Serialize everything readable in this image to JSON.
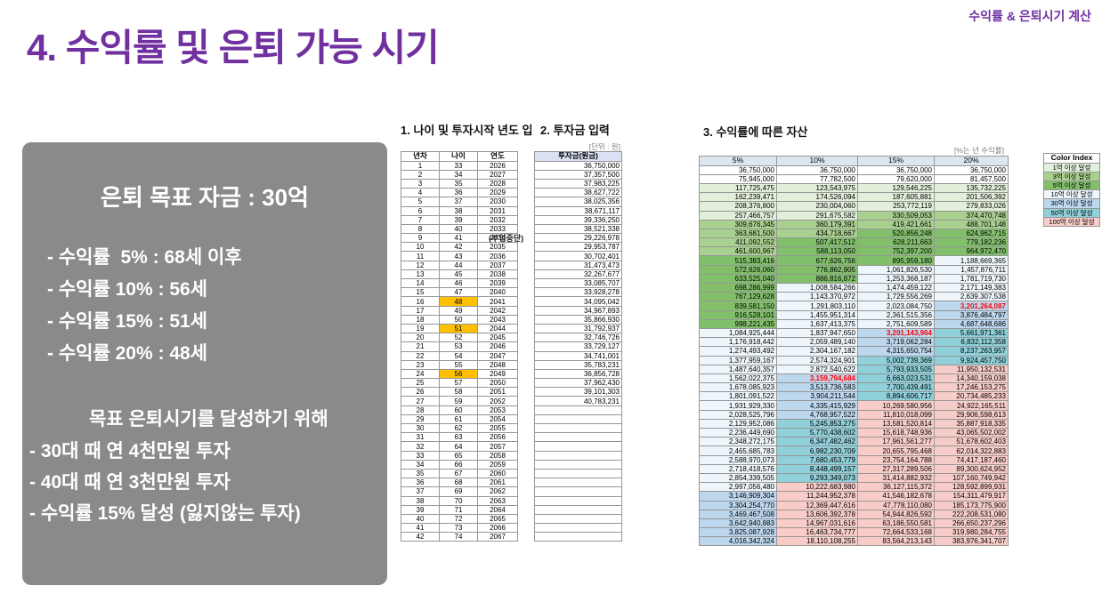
{
  "slide": {
    "title": "4. 수익률 및 은퇴 가능 시기",
    "corner_label": "수익률 & 은퇴시기 계산"
  },
  "summary_box": {
    "headline": "은퇴 목표 자금 : 30억",
    "rate_lines": [
      "- 수익률  5% : 68세 이후",
      "- 수익률 10% : 56세",
      "- 수익률 15% : 51세",
      "- 수익률 20% : 48세"
    ],
    "goal_heading": "목표 은퇴시기를 달성하기 위해",
    "goal_lines": [
      "- 30대 때 연 4천만원 투자",
      "- 40대 때 연 3천만원 투자",
      "- 수익률 15% 달성 (잃지않는 투자)"
    ]
  },
  "section1": {
    "label": "1. 나이 및 투자시작 년도 입",
    "label2": "2. 투자금 입력"
  },
  "section3": {
    "label": "3. 수익률에 따른 자산",
    "note": "[%는 년 수익률]"
  },
  "age_table": {
    "headers": [
      "년차",
      "나이",
      "연도"
    ],
    "annotation": "(부업중단)",
    "highlighted_ages": [
      48,
      51,
      56
    ],
    "rows": [
      [
        1,
        33,
        2026
      ],
      [
        2,
        34,
        2027
      ],
      [
        3,
        35,
        2028
      ],
      [
        4,
        36,
        2029
      ],
      [
        5,
        37,
        2030
      ],
      [
        6,
        38,
        2031
      ],
      [
        7,
        39,
        2032
      ],
      [
        8,
        40,
        2033
      ],
      [
        9,
        41,
        2034
      ],
      [
        10,
        42,
        2035
      ],
      [
        11,
        43,
        2036
      ],
      [
        12,
        44,
        2037
      ],
      [
        13,
        45,
        2038
      ],
      [
        14,
        46,
        2039
      ],
      [
        15,
        47,
        2040
      ],
      [
        16,
        48,
        2041
      ],
      [
        17,
        49,
        2042
      ],
      [
        18,
        50,
        2043
      ],
      [
        19,
        51,
        2044
      ],
      [
        20,
        52,
        2045
      ],
      [
        21,
        53,
        2046
      ],
      [
        22,
        54,
        2047
      ],
      [
        23,
        55,
        2048
      ],
      [
        24,
        56,
        2049
      ],
      [
        25,
        57,
        2050
      ],
      [
        26,
        58,
        2051
      ],
      [
        27,
        59,
        2052
      ],
      [
        28,
        60,
        2053
      ],
      [
        29,
        61,
        2054
      ],
      [
        30,
        62,
        2055
      ],
      [
        31,
        63,
        2056
      ],
      [
        32,
        64,
        2057
      ],
      [
        33,
        65,
        2058
      ],
      [
        34,
        66,
        2059
      ],
      [
        35,
        67,
        2060
      ],
      [
        36,
        68,
        2061
      ],
      [
        37,
        69,
        2062
      ],
      [
        38,
        70,
        2063
      ],
      [
        39,
        71,
        2064
      ],
      [
        40,
        72,
        2065
      ],
      [
        41,
        73,
        2066
      ],
      [
        42,
        74,
        2067
      ]
    ]
  },
  "invest_table": {
    "unit_label": "[단위 : 원]",
    "header": "투자금(원금)",
    "total_rows": 42,
    "values": [
      "36,750,000",
      "37,357,500",
      "37,983,225",
      "38,627,722",
      "38,025,356",
      "38,671,117",
      "39,336,250",
      "38,521,338",
      "29,226,978",
      "29,953,787",
      "30,702,401",
      "31,473,473",
      "32,267,677",
      "33,085,707",
      "33,928,278",
      "34,095,042",
      "34,967,893",
      "35,866,930",
      "31,792,937",
      "32,746,726",
      "33,729,127",
      "34,741,001",
      "35,783,231",
      "36,856,728",
      "37,962,430",
      "39,101,303",
      "40,783,231"
    ]
  },
  "chart_data": {
    "type": "table",
    "title": "3. 수익률에 따른 자산",
    "columns": [
      "5%",
      "10%",
      "15%",
      "20%"
    ],
    "rows": [
      [
        "36,750,000",
        "36,750,000",
        "36,750,000",
        "36,750,000"
      ],
      [
        "75,945,000",
        "77,782,500",
        "79,620,000",
        "81,457,500"
      ],
      [
        "117,725,475",
        "123,543,975",
        "129,546,225",
        "135,732,225"
      ],
      [
        "162,239,471",
        "174,526,094",
        "187,605,881",
        "201,506,392"
      ],
      [
        "208,376,800",
        "230,004,060",
        "253,772,119",
        "279,833,026"
      ],
      [
        "257,466,757",
        "291,675,582",
        "330,509,053",
        "374,470,748"
      ],
      [
        "309,676,345",
        "360,179,391",
        "419,421,661",
        "488,701,148"
      ],
      [
        "363,681,500",
        "434,718,667",
        "520,856,248",
        "624,962,715"
      ],
      [
        "411,092,552",
        "507,417,512",
        "628,211,663",
        "779,182,236"
      ],
      [
        "461,600,967",
        "588,113,050",
        "752,397,200",
        "964,972,470"
      ],
      [
        "515,383,416",
        "677,626,756",
        "895,959,180",
        "1,188,669,365"
      ],
      [
        "572,626,060",
        "776,862,905",
        "1,061,826,530",
        "1,457,876,711"
      ],
      [
        "633,525,040",
        "886,816,872",
        "1,253,368,187",
        "1,781,719,730"
      ],
      [
        "698,286,999",
        "1,008,584,266",
        "1,474,459,122",
        "2,171,149,383"
      ],
      [
        "767,129,628",
        "1,143,370,972",
        "1,729,556,269",
        "2,639,307,538"
      ],
      [
        "839,581,150",
        "1,291,803,110",
        "2,023,084,750",
        "3,201,264,087"
      ],
      [
        "916,528,101",
        "1,455,951,314",
        "2,361,515,356",
        "3,876,484,797"
      ],
      [
        "998,221,435",
        "1,637,413,375",
        "2,751,609,589",
        "4,687,648,686"
      ],
      [
        "1,084,925,444",
        "1,837,947,650",
        "3,201,143,964",
        "5,661,971,361"
      ],
      [
        "1,176,918,442",
        "2,059,489,140",
        "3,719,062,284",
        "6,832,112,358"
      ],
      [
        "1,274,493,492",
        "2,304,167,182",
        "4,315,650,754",
        "8,237,263,957"
      ],
      [
        "1,377,959,167",
        "2,574,324,901",
        "5,002,739,369",
        "9,924,457,750"
      ],
      [
        "1,487,640,357",
        "2,872,540,622",
        "5,793,933,505",
        "11,950,132,531"
      ],
      [
        "1,562,022,375",
        "3,159,794,684",
        "6,663,023,531",
        "14,340,159,038"
      ],
      [
        "1,678,085,923",
        "3,513,736,583",
        "7,700,439,491",
        "17,246,153,275"
      ],
      [
        "1,801,091,522",
        "3,904,211,544",
        "8,894,606,717",
        "20,734,485,233"
      ],
      [
        "1,931,929,330",
        "4,335,415,929",
        "10,269,580,956",
        "24,922,165,511"
      ],
      [
        "2,028,525,796",
        "4,768,957,522",
        "11,810,018,099",
        "29,906,598,613"
      ],
      [
        "2,129,952,086",
        "5,245,853,275",
        "13,581,520,814",
        "35,887,918,335"
      ],
      [
        "2,236,449,690",
        "5,770,438,602",
        "15,618,748,936",
        "43,065,502,002"
      ],
      [
        "2,348,272,175",
        "6,347,482,462",
        "17,961,561,277",
        "51,678,602,403"
      ],
      [
        "2,465,685,783",
        "6,982,230,709",
        "20,655,795,468",
        "62,014,322,883"
      ],
      [
        "2,588,970,073",
        "7,680,453,779",
        "23,754,164,788",
        "74,417,187,460"
      ],
      [
        "2,718,418,576",
        "8,448,499,157",
        "27,317,289,506",
        "89,300,624,952"
      ],
      [
        "2,854,339,505",
        "9,293,349,073",
        "31,414,882,932",
        "107,160,749,942"
      ],
      [
        "2,997,056,480",
        "10,222,683,980",
        "36,127,115,372",
        "128,592,899,931"
      ],
      [
        "3,146,909,304",
        "11,244,952,378",
        "41,546,182,678",
        "154,311,479,917"
      ],
      [
        "3,304,254,770",
        "12,369,447,616",
        "47,778,110,080",
        "185,173,775,900"
      ],
      [
        "3,469,467,508",
        "13,606,392,378",
        "54,944,826,592",
        "222,208,531,080"
      ],
      [
        "3,642,940,883",
        "14,967,031,616",
        "63,186,550,581",
        "266,650,237,296"
      ],
      [
        "3,825,087,928",
        "16,463,734,777",
        "72,664,533,168",
        "319,980,284,755"
      ],
      [
        "4,016,342,324",
        "18,110,108,255",
        "83,564,213,143",
        "383,976,341,707"
      ]
    ],
    "red_values": [
      "3,159,794,684",
      "3,201,143,964",
      "3,201,264,087"
    ]
  },
  "color_index": {
    "header": "Color Index",
    "items": [
      {
        "label": "1억 이상 달성",
        "color": "#e2efda",
        "min": 100000000
      },
      {
        "label": "3억 이상 달성",
        "color": "#a9d08e",
        "min": 300000000
      },
      {
        "label": "5억 이상 달성",
        "color": "#82bf6b",
        "min": 500000000
      },
      {
        "label": "10억 이상 달성",
        "color": "#eef6fb",
        "min": 1000000000
      },
      {
        "label": "30억 이상 달성",
        "color": "#bdd7ee",
        "min": 3000000000
      },
      {
        "label": "50억 이상 달성",
        "color": "#8fd0da",
        "min": 5000000000
      },
      {
        "label": "100억 이상 달성",
        "color": "#f8cdc9",
        "min": 10000000000
      }
    ]
  },
  "colors": {
    "accent_purple": "#7030a0",
    "box_gray": "#8a8a8a",
    "highlight_orange": "#ffc000",
    "alert_red": "#ff0000",
    "header_blue": "#dce6f1",
    "below_threshold": "#ffffff"
  }
}
